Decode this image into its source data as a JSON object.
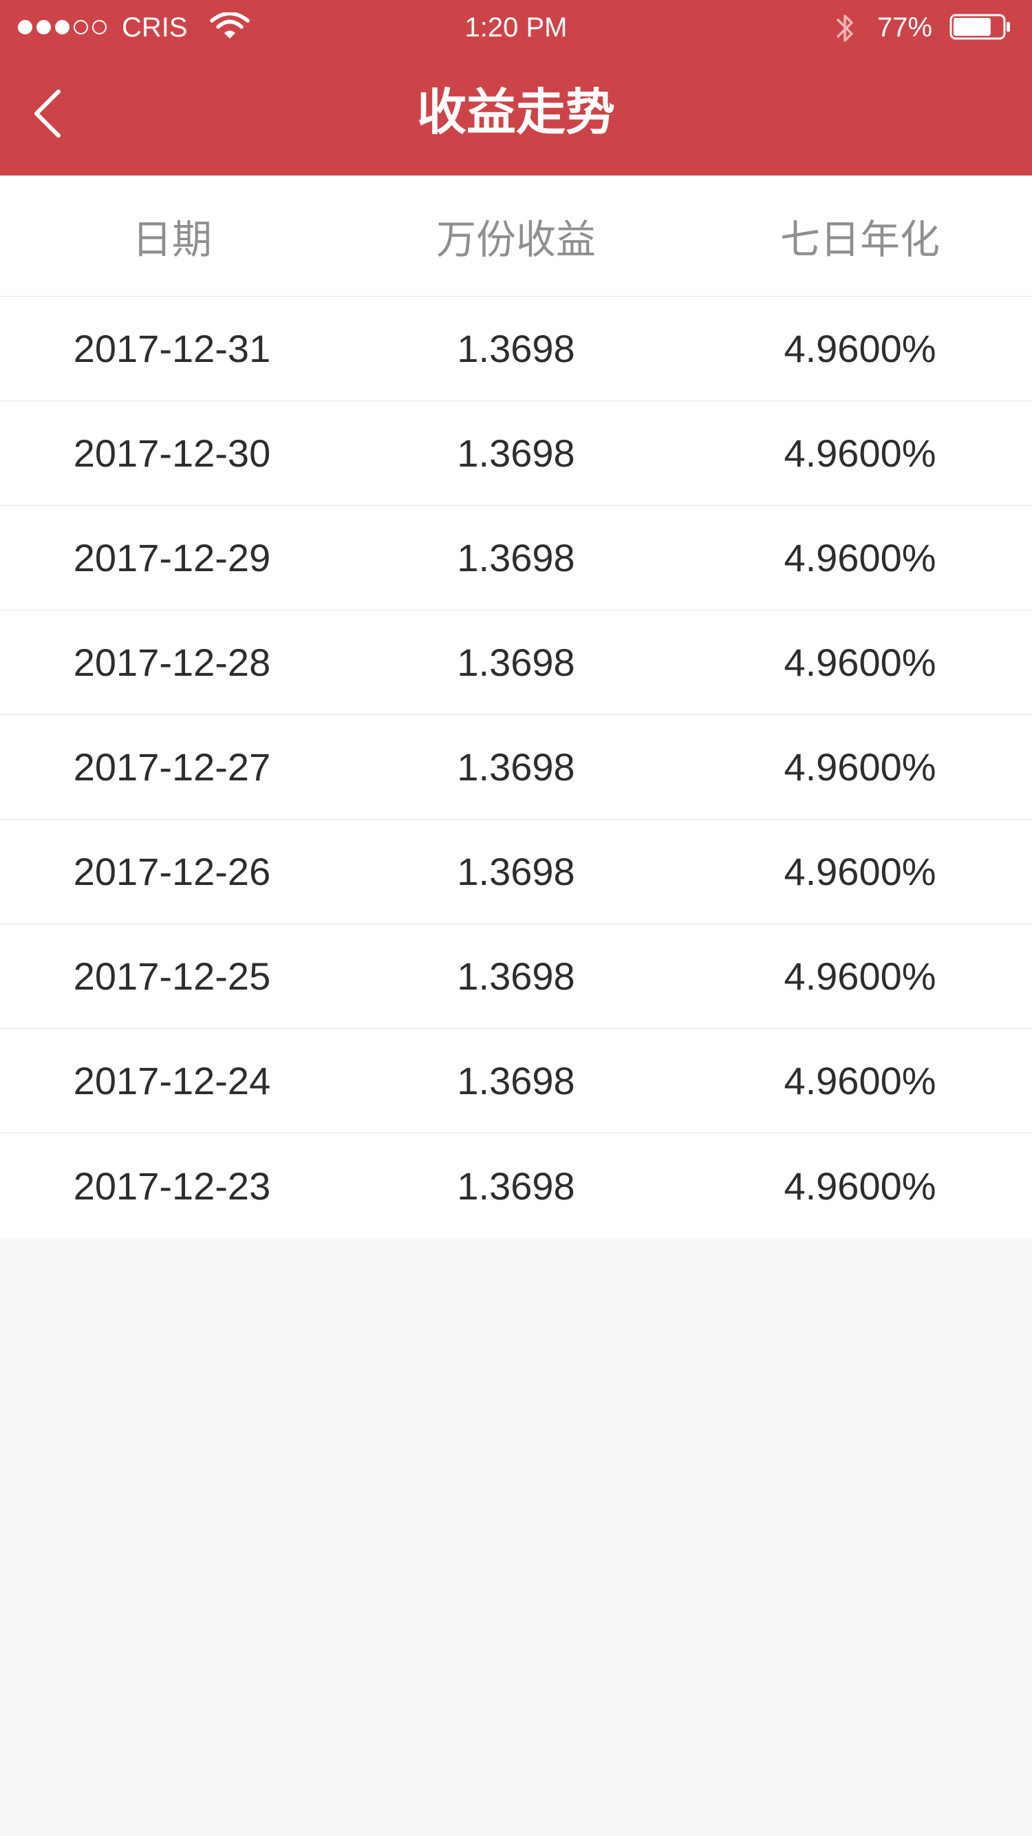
{
  "status_bar": {
    "signal_full": 3,
    "signal_total": 5,
    "carrier": "CRIS",
    "time": "1:20 PM",
    "battery_percent": "77%",
    "battery_level": 0.77
  },
  "nav": {
    "title": "收益走势",
    "back_icon": "chevron-left-icon",
    "background_color": "#cd4448"
  },
  "table": {
    "headers": [
      "日期",
      "万份收益",
      "七日年化"
    ],
    "rows": [
      {
        "date": "2017-12-31",
        "earnings": "1.3698",
        "annualized": "4.9600%"
      },
      {
        "date": "2017-12-30",
        "earnings": "1.3698",
        "annualized": "4.9600%"
      },
      {
        "date": "2017-12-29",
        "earnings": "1.3698",
        "annualized": "4.9600%"
      },
      {
        "date": "2017-12-28",
        "earnings": "1.3698",
        "annualized": "4.9600%"
      },
      {
        "date": "2017-12-27",
        "earnings": "1.3698",
        "annualized": "4.9600%"
      },
      {
        "date": "2017-12-26",
        "earnings": "1.3698",
        "annualized": "4.9600%"
      },
      {
        "date": "2017-12-25",
        "earnings": "1.3698",
        "annualized": "4.9600%"
      },
      {
        "date": "2017-12-24",
        "earnings": "1.3698",
        "annualized": "4.9600%"
      },
      {
        "date": "2017-12-23",
        "earnings": "1.3698",
        "annualized": "4.9600%"
      }
    ]
  }
}
